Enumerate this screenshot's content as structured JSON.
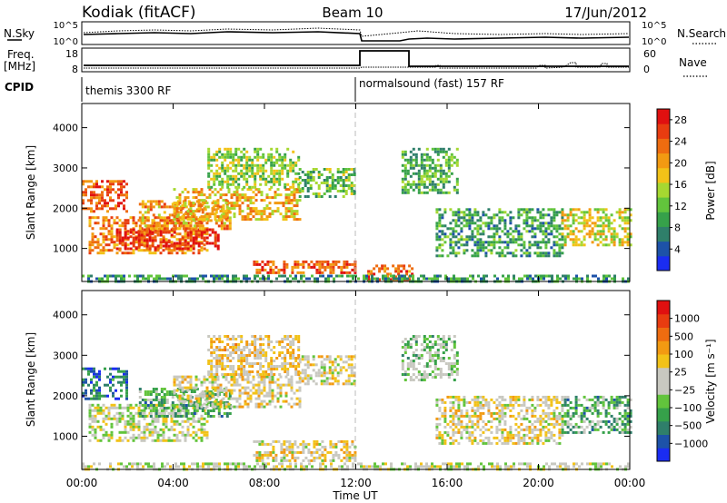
{
  "header": {
    "station": "Kodiak (fitACF)",
    "beam": "Beam 10",
    "date": "17/Jun/2012"
  },
  "noise_panel": {
    "left_label": "N.Sky",
    "right_label": "N.Search",
    "left_ticks": [
      "10^5",
      "10^0"
    ],
    "right_ticks": [
      "10^5",
      "10^0"
    ]
  },
  "freq_panel": {
    "left_label_1": "Freq.",
    "left_label_2": "[MHz]",
    "right_label": "Nave",
    "left_ticks": [
      "18",
      "8"
    ],
    "right_ticks": [
      "60",
      "0"
    ]
  },
  "cpid_panel": {
    "label": "CPID",
    "mode_1": "themis 3300 RF",
    "mode_2": "normalsound (fast) 157 RF"
  },
  "x_axis": {
    "ticks": [
      "00:00",
      "04:00",
      "08:00",
      "12:00",
      "16:00",
      "20:00",
      "00:00"
    ],
    "label": "Time UT"
  },
  "chart_data": [
    {
      "type": "heatmap",
      "name": "power",
      "ylabel": "Slant Range [km]",
      "y_ticks": [
        "1000",
        "2000",
        "3000",
        "4000"
      ],
      "ylim": [
        180,
        4600
      ],
      "xlim_hours": [
        0,
        24
      ],
      "colorbar": {
        "label": "Power [dB]",
        "ticks": [
          "4",
          "8",
          "12",
          "16",
          "20",
          "24",
          "28"
        ],
        "range": [
          0,
          30
        ],
        "colors": [
          "#1a2cf2",
          "#1d52a8",
          "#2f7f6a",
          "#36a14a",
          "#62c43c",
          "#a6d831",
          "#f2c218",
          "#f29a12",
          "#ee6c10",
          "#e83c10",
          "#e01010"
        ]
      },
      "echo_regions": [
        {
          "t0": 0.0,
          "t1": 2.0,
          "r0": 1900,
          "r1": 2700,
          "level": 0.85
        },
        {
          "t0": 0.3,
          "t1": 5.5,
          "r0": 900,
          "r1": 1800,
          "level": 0.75
        },
        {
          "t0": 1.5,
          "t1": 6.0,
          "r0": 1000,
          "r1": 1500,
          "level": 0.95
        },
        {
          "t0": 2.5,
          "t1": 6.5,
          "r0": 1500,
          "r1": 2200,
          "level": 0.7
        },
        {
          "t0": 4.0,
          "t1": 9.5,
          "r0": 1700,
          "r1": 2500,
          "level": 0.65
        },
        {
          "t0": 5.5,
          "t1": 9.5,
          "r0": 2500,
          "r1": 3500,
          "level": 0.45
        },
        {
          "t0": 7.5,
          "t1": 12.0,
          "r0": 400,
          "r1": 700,
          "level": 0.85
        },
        {
          "t0": 9.5,
          "t1": 12.0,
          "r0": 2300,
          "r1": 3000,
          "level": 0.4
        },
        {
          "t0": 12.5,
          "t1": 14.5,
          "r0": 200,
          "r1": 600,
          "level": 0.8
        },
        {
          "t0": 14.0,
          "t1": 16.5,
          "r0": 2400,
          "r1": 3500,
          "level": 0.35
        },
        {
          "t0": 15.5,
          "t1": 21.0,
          "r0": 800,
          "r1": 2000,
          "level": 0.3
        },
        {
          "t0": 21.0,
          "t1": 24.0,
          "r0": 1100,
          "r1": 2000,
          "level": 0.55
        },
        {
          "t0": 0.0,
          "t1": 24.0,
          "r0": 180,
          "r1": 350,
          "level": 0.25
        }
      ]
    },
    {
      "type": "heatmap",
      "name": "velocity",
      "ylabel": "Slant Range [km]",
      "y_ticks": [
        "1000",
        "2000",
        "3000",
        "4000"
      ],
      "ylim": [
        180,
        4600
      ],
      "xlim_hours": [
        0,
        24
      ],
      "colorbar": {
        "label": "Velocity [m s⁻¹]",
        "ticks": [
          "1000",
          "500",
          "100",
          "25",
          "−25",
          "−100",
          "−500",
          "−1000"
        ],
        "colors": [
          "#1a2cf2",
          "#1d52a8",
          "#2f7f6a",
          "#36a14a",
          "#62c43c",
          "#c8c8c0",
          "#c8c8c0",
          "#f2c218",
          "#f29a12",
          "#ee6c10",
          "#e83c10",
          "#e01010"
        ]
      },
      "echo_regions": [
        {
          "t0": 0.0,
          "t1": 2.0,
          "r0": 1900,
          "r1": 2700,
          "level": 0.15
        },
        {
          "t0": 0.3,
          "t1": 5.5,
          "r0": 900,
          "r1": 1800,
          "level": 0.5
        },
        {
          "t0": 2.5,
          "t1": 6.5,
          "r0": 1500,
          "r1": 2200,
          "level": 0.3
        },
        {
          "t0": 4.0,
          "t1": 9.5,
          "r0": 1700,
          "r1": 2500,
          "level": 0.55
        },
        {
          "t0": 5.5,
          "t1": 9.5,
          "r0": 2500,
          "r1": 3500,
          "level": 0.6
        },
        {
          "t0": 7.5,
          "t1": 12.0,
          "r0": 400,
          "r1": 900,
          "level": 0.55
        },
        {
          "t0": 9.5,
          "t1": 12.0,
          "r0": 2300,
          "r1": 3000,
          "level": 0.55
        },
        {
          "t0": 14.0,
          "t1": 16.5,
          "r0": 2400,
          "r1": 3500,
          "level": 0.4
        },
        {
          "t0": 15.5,
          "t1": 21.0,
          "r0": 800,
          "r1": 2000,
          "level": 0.55
        },
        {
          "t0": 21.0,
          "t1": 24.0,
          "r0": 1100,
          "r1": 2000,
          "level": 0.3
        },
        {
          "t0": 0.0,
          "t1": 24.0,
          "r0": 180,
          "r1": 350,
          "level": 0.5
        }
      ]
    }
  ]
}
